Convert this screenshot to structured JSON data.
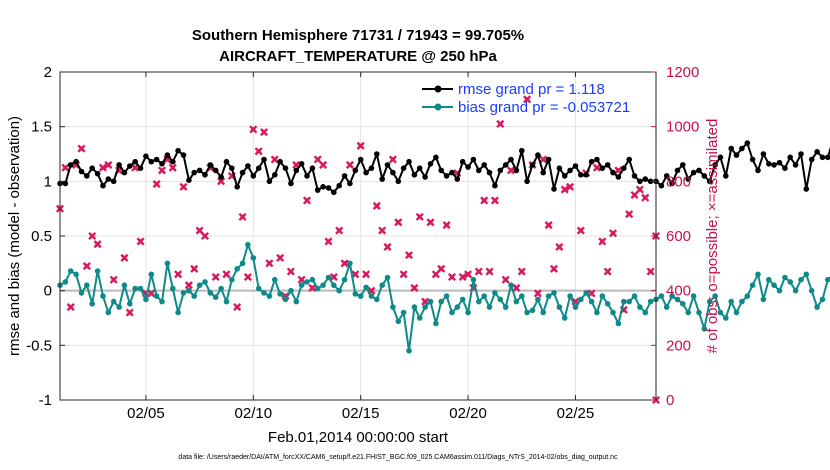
{
  "chart_data": {
    "type": "line",
    "title_line1": "Southern Hemisphere 71731 / 71943 = 99.705%",
    "title_line2": "AIRCRAFT_TEMPERATURE @ 250 hPa",
    "xlabel": "Feb.01,2014 00:00:00 start",
    "ylabel_left": "rmse and bias (model - observation)",
    "ylabel_right": "# of obs: o=possible; ×=assimilated",
    "footnote": "data file: /Users/raeder/DAI/ATM_forcXX/CAM6_setup/f.e21.FHIST_BGC.f09_025.CAM6assim.011/Diags_NTrS_2014-02/obs_diag_output.nc",
    "xlim": [
      1,
      28.75
    ],
    "ylim_left": [
      -1,
      2
    ],
    "ylim_right": [
      0,
      1200
    ],
    "x_ticks": [
      5,
      10,
      15,
      20,
      25
    ],
    "x_tick_labels": [
      "02/05",
      "02/10",
      "02/15",
      "02/20",
      "02/25"
    ],
    "y_left_ticks": [
      -1,
      -0.5,
      0,
      0.5,
      1,
      1.5,
      2
    ],
    "y_left_tick_labels": [
      "-1",
      "-0.5",
      "0",
      "0.5",
      "1",
      "1.5",
      "2"
    ],
    "y_right_ticks": [
      0,
      200,
      400,
      600,
      800,
      1000,
      1200
    ],
    "y_right_tick_labels": [
      "0",
      "200",
      "400",
      "600",
      "800",
      "1000",
      "1200"
    ],
    "grid": true,
    "legend_position": "top-right",
    "x_start": 1.0,
    "x_step": 0.25,
    "series": [
      {
        "name": "rmse grand pr = 1.118",
        "axis": "left",
        "color": "#000000",
        "marker": "filled-circle",
        "values": [
          0.98,
          0.98,
          1.15,
          1.18,
          1.09,
          1.05,
          1.12,
          1.07,
          0.96,
          1.02,
          1.0,
          1.15,
          1.08,
          1.14,
          1.18,
          1.12,
          1.23,
          1.18,
          1.2,
          1.16,
          1.24,
          1.18,
          1.28,
          1.24,
          1.01,
          1.08,
          1.1,
          1.06,
          1.15,
          1.1,
          1.04,
          1.18,
          1.12,
          0.95,
          1.08,
          1.14,
          1.05,
          1.12,
          1.2,
          1.0,
          1.06,
          1.18,
          1.12,
          0.98,
          1.1,
          1.16,
          1.05,
          1.12,
          0.92,
          0.95,
          0.94,
          0.9,
          0.96,
          1.05,
          0.98,
          1.1,
          1.2,
          1.08,
          1.12,
          1.25,
          1.02,
          1.15,
          1.08,
          1.0,
          1.12,
          1.18,
          1.06,
          1.12,
          1.04,
          1.16,
          1.22,
          1.1,
          1.05,
          1.08,
          1.02,
          1.18,
          1.13,
          1.2,
          1.1,
          1.15,
          1.08,
          0.96,
          1.1,
          1.15,
          1.2,
          1.1,
          1.28,
          1.0,
          1.15,
          1.24,
          1.08,
          1.2,
          0.93,
          1.12,
          1.05,
          1.1,
          1.14,
          1.06,
          1.06,
          1.18,
          1.2,
          1.12,
          1.15,
          1.08,
          1.04,
          1.12,
          1.2,
          1.05,
          1.0,
          1.02,
          1.0,
          1.0,
          0.96,
          1.05,
          0.98,
          1.1,
          1.15,
          1.02,
          1.08,
          1.1,
          1.05,
          1.0,
          1.15,
          1.22,
          1.05,
          1.3,
          1.24,
          1.3,
          1.35,
          1.2,
          1.1,
          1.25,
          1.16,
          1.15,
          1.17,
          1.12,
          1.22,
          1.15,
          1.25,
          0.93,
          1.2,
          1.27,
          1.22,
          1.22,
          1.38,
          1.12,
          1.08,
          1.27
        ],
        "style": {
          "marker_style": "dot"
        }
      },
      {
        "name": "bias grand pr = -0.053721",
        "axis": "left",
        "color": "#0e8a8a",
        "marker": "filled-circle",
        "values": [
          0.05,
          0.08,
          0.18,
          0.15,
          -0.02,
          0.05,
          -0.12,
          0.18,
          -0.05,
          -0.2,
          -0.1,
          -0.15,
          0.05,
          -0.12,
          0.02,
          0.02,
          -0.08,
          0.15,
          -0.05,
          -0.1,
          0.25,
          0.02,
          -0.2,
          -0.02,
          0.0,
          -0.05,
          0.05,
          0.08,
          -0.02,
          -0.06,
          0.02,
          -0.1,
          0.1,
          0.2,
          0.25,
          0.42,
          0.3,
          0.02,
          -0.02,
          -0.05,
          0.1,
          -0.03,
          -0.08,
          0.0,
          -0.1,
          0.05,
          0.08,
          0.1,
          0.02,
          0.05,
          0.12,
          0.05,
          0.0,
          0.1,
          0.25,
          -0.03,
          -0.05,
          0.03,
          -0.05,
          -0.08,
          0.05,
          0.12,
          -0.15,
          -0.28,
          -0.2,
          -0.55,
          -0.15,
          -0.25,
          -0.15,
          -0.1,
          -0.3,
          -0.1,
          -0.05,
          -0.2,
          -0.15,
          -0.08,
          -0.2,
          0.1,
          -0.1,
          -0.05,
          -0.15,
          -0.02,
          -0.08,
          -0.15,
          0.05,
          -0.1,
          -0.05,
          -0.2,
          -0.18,
          -0.08,
          -0.2,
          -0.05,
          -0.02,
          -0.15,
          -0.25,
          -0.05,
          -0.15,
          -0.08,
          -0.02,
          -0.1,
          -0.2,
          -0.05,
          -0.12,
          -0.2,
          -0.3,
          -0.1,
          -0.1,
          -0.05,
          -0.15,
          -0.2,
          -0.1,
          -0.08,
          -0.05,
          -0.15,
          -0.05,
          -0.08,
          -0.12,
          -0.2,
          -0.05,
          -0.2,
          -0.35,
          -0.1,
          -0.05,
          -0.2,
          -0.25,
          -0.1,
          -0.2,
          -0.1,
          -0.05,
          0.05,
          0.15,
          -0.08,
          0.1,
          0.05,
          0.0,
          0.12,
          0.08,
          0.0,
          0.1,
          0.15,
          0.0,
          -0.15,
          -0.08,
          0.1,
          0.15,
          0.05,
          -0.15,
          -0.2,
          -0.3,
          -0.05,
          0.25,
          0.35
        ],
        "style": {
          "marker_style": "dot"
        }
      },
      {
        "name": "obs assimilated",
        "axis": "right",
        "color": "#d81b60",
        "marker": "x",
        "points": [
          [
            1.0,
            700
          ],
          [
            1.25,
            850
          ],
          [
            1.5,
            340
          ],
          [
            1.75,
            860
          ],
          [
            2.0,
            920
          ],
          [
            2.25,
            490
          ],
          [
            2.5,
            600
          ],
          [
            2.75,
            570
          ],
          [
            3.0,
            850
          ],
          [
            3.25,
            860
          ],
          [
            3.5,
            440
          ],
          [
            3.75,
            840
          ],
          [
            4.0,
            520
          ],
          [
            4.25,
            320
          ],
          [
            4.5,
            850
          ],
          [
            4.75,
            580
          ],
          [
            5.0,
            390
          ],
          [
            5.25,
            390
          ],
          [
            5.5,
            790
          ],
          [
            5.75,
            840
          ],
          [
            6.0,
            880
          ],
          [
            6.25,
            850
          ],
          [
            6.5,
            460
          ],
          [
            6.75,
            780
          ],
          [
            7.0,
            420
          ],
          [
            7.25,
            480
          ],
          [
            7.5,
            620
          ],
          [
            7.75,
            600
          ],
          [
            8.0,
            850
          ],
          [
            8.25,
            450
          ],
          [
            8.5,
            800
          ],
          [
            8.75,
            460
          ],
          [
            9.0,
            820
          ],
          [
            9.25,
            340
          ],
          [
            9.5,
            670
          ],
          [
            9.75,
            450
          ],
          [
            10.0,
            990
          ],
          [
            10.25,
            910
          ],
          [
            10.5,
            980
          ],
          [
            10.75,
            500
          ],
          [
            11.0,
            880
          ],
          [
            11.25,
            520
          ],
          [
            11.5,
            380
          ],
          [
            11.75,
            470
          ],
          [
            12.0,
            860
          ],
          [
            12.25,
            440
          ],
          [
            12.5,
            730
          ],
          [
            12.75,
            410
          ],
          [
            13.0,
            880
          ],
          [
            13.25,
            860
          ],
          [
            13.5,
            580
          ],
          [
            13.75,
            450
          ],
          [
            14.0,
            620
          ],
          [
            14.25,
            500
          ],
          [
            14.5,
            860
          ],
          [
            14.75,
            460
          ],
          [
            15.0,
            930
          ],
          [
            15.25,
            460
          ],
          [
            15.5,
            400
          ],
          [
            15.75,
            710
          ],
          [
            16.0,
            620
          ],
          [
            16.25,
            560
          ],
          [
            16.5,
            880
          ],
          [
            16.75,
            650
          ],
          [
            17.0,
            460
          ],
          [
            17.25,
            530
          ],
          [
            17.5,
            410
          ],
          [
            17.75,
            670
          ],
          [
            18.0,
            360
          ],
          [
            18.25,
            650
          ],
          [
            18.5,
            460
          ],
          [
            18.75,
            480
          ],
          [
            19.0,
            640
          ],
          [
            19.25,
            450
          ],
          [
            19.5,
            830
          ],
          [
            19.75,
            450
          ],
          [
            20.0,
            460
          ],
          [
            20.25,
            410
          ],
          [
            20.5,
            470
          ],
          [
            20.75,
            730
          ],
          [
            21.0,
            470
          ],
          [
            21.25,
            730
          ],
          [
            21.5,
            1010
          ],
          [
            21.75,
            440
          ],
          [
            22.0,
            840
          ],
          [
            22.25,
            410
          ],
          [
            22.5,
            470
          ],
          [
            22.75,
            1100
          ],
          [
            23.0,
            860
          ],
          [
            23.25,
            390
          ],
          [
            23.5,
            880
          ],
          [
            23.75,
            640
          ],
          [
            24.0,
            480
          ],
          [
            24.25,
            560
          ],
          [
            24.5,
            770
          ],
          [
            24.75,
            780
          ],
          [
            25.0,
            360
          ],
          [
            25.25,
            620
          ],
          [
            25.5,
            830
          ],
          [
            25.75,
            390
          ],
          [
            26.0,
            850
          ],
          [
            26.25,
            580
          ],
          [
            26.5,
            470
          ],
          [
            26.75,
            610
          ],
          [
            27.0,
            840
          ],
          [
            27.25,
            330
          ],
          [
            27.5,
            680
          ],
          [
            27.75,
            750
          ],
          [
            28.0,
            770
          ],
          [
            28.25,
            740
          ],
          [
            28.5,
            470
          ],
          [
            28.75,
            600
          ],
          [
            28.75,
            0
          ]
        ]
      }
    ]
  }
}
